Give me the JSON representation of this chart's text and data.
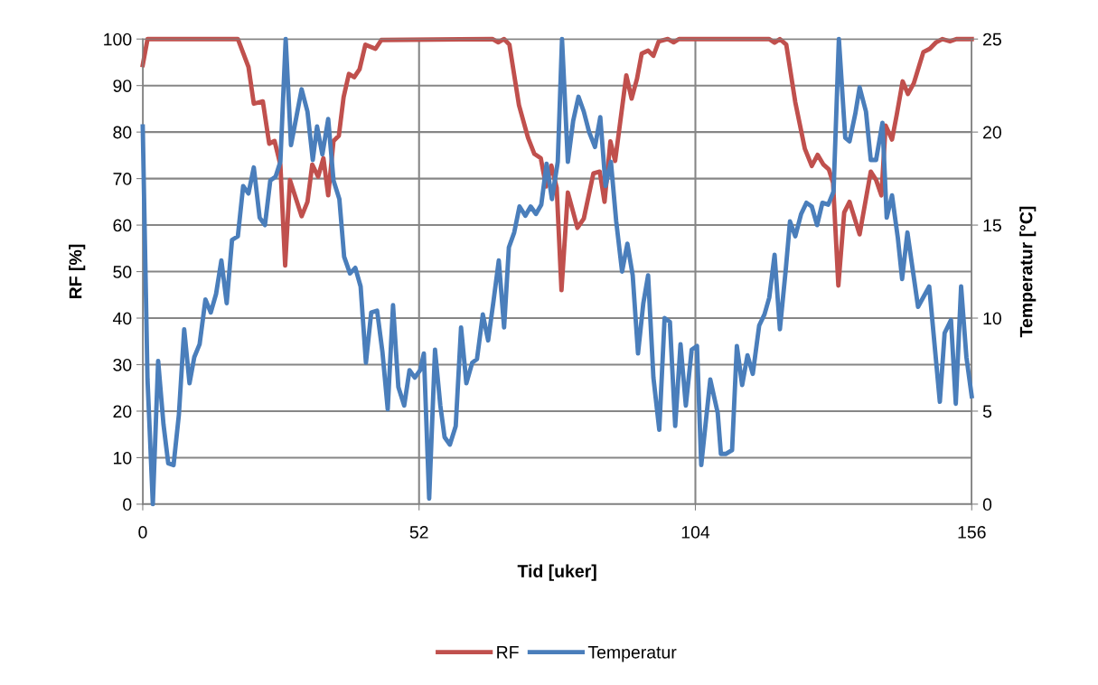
{
  "chart_data": {
    "type": "line",
    "xlabel": "Tid [uker]",
    "ylabel": "RF [%]",
    "y2label": "Temperatur [°C]",
    "xlim": [
      0,
      156
    ],
    "xticks": [
      0,
      52,
      104,
      156
    ],
    "ylim": [
      0,
      100
    ],
    "yticks": [
      0,
      10,
      20,
      30,
      40,
      50,
      60,
      70,
      80,
      90,
      100
    ],
    "y2lim": [
      0,
      25
    ],
    "y2ticks": [
      0,
      5,
      10,
      15,
      20,
      25
    ],
    "grid": true,
    "legend": "bottom",
    "marker": "none",
    "line_style": "solid",
    "series": [
      {
        "name": "RF",
        "color": "#c0504d",
        "axis": "y",
        "x": [
          0,
          0.9,
          17.9,
          18.9,
          19.9,
          20.9,
          22.6,
          23.8,
          24.8,
          25.9,
          26.8,
          27.7,
          29.9,
          31,
          31.9,
          33,
          34,
          34.9,
          35.9,
          36.9,
          37.8,
          38.8,
          39.8,
          40.8,
          41.9,
          43.8,
          44.9,
          65.8,
          66.9,
          68,
          69,
          70.8,
          72.5,
          73.7,
          74.9,
          75.9,
          76.9,
          77.9,
          78.8,
          80,
          81.8,
          83,
          84.8,
          86,
          86.9,
          88,
          88.9,
          91,
          92,
          93,
          93.9,
          95.1,
          96.1,
          97.1,
          98.8,
          99.9,
          100.9,
          117.9,
          118.9,
          119.9,
          121.1,
          122.8,
          124.6,
          125.9,
          127,
          128.1,
          129.1,
          129.9,
          130.9,
          132,
          133,
          134.9,
          137,
          138,
          139,
          139.8,
          141,
          141.9,
          143,
          144,
          145.1,
          146.9,
          148.1,
          149.3,
          150.5,
          151.9,
          153.1,
          156
        ],
        "values": [
          94.4,
          100,
          100,
          97,
          94,
          86.1,
          86.6,
          77.5,
          78.1,
          73,
          51.3,
          69.7,
          61.9,
          65,
          73,
          70.4,
          74.4,
          66.4,
          78.1,
          79.2,
          87.5,
          92.5,
          91.8,
          93.5,
          98.8,
          97.9,
          99.8,
          100,
          99.3,
          100,
          98.8,
          85.8,
          78.8,
          75.3,
          74.4,
          68.3,
          72.8,
          68,
          46,
          67,
          59.4,
          61.4,
          71.1,
          71.5,
          65,
          78,
          73.8,
          92.2,
          87.2,
          91.4,
          96.9,
          97.5,
          96.4,
          99.5,
          100,
          99.3,
          100,
          100,
          99.2,
          100,
          98.8,
          86.4,
          76.4,
          72.7,
          75.1,
          73,
          72,
          69.1,
          47,
          62.7,
          65,
          58,
          71.5,
          69.7,
          66.4,
          81.4,
          78.4,
          83.8,
          90.9,
          88.2,
          90.5,
          97.2,
          97.9,
          99.3,
          100,
          99.5,
          100,
          100
        ]
      },
      {
        "name": "Temperatur",
        "color": "#4a7ebb",
        "axis": "y2",
        "x": [
          0,
          0.9,
          1.9,
          2.9,
          3.9,
          4.8,
          5.8,
          6.8,
          7.8,
          8.8,
          9.7,
          10.7,
          11.8,
          12.8,
          13.8,
          14.8,
          15.8,
          16.8,
          17.9,
          18.9,
          19.9,
          20.9,
          22,
          23,
          24,
          25,
          25.9,
          26.9,
          27.9,
          28.9,
          29.9,
          31,
          32,
          32.8,
          33.8,
          34.9,
          35.9,
          37,
          37.9,
          39,
          40,
          41,
          42,
          43,
          44.1,
          45.1,
          46.1,
          47.1,
          48.1,
          49.2,
          50.2,
          51.2,
          52.2,
          52.9,
          53.9,
          55,
          56,
          56.8,
          57.8,
          58.9,
          59.9,
          60.9,
          62,
          62.9,
          64,
          65,
          66,
          67,
          68,
          68.9,
          69.9,
          70.9,
          72,
          73,
          74,
          75,
          76,
          77,
          78.1,
          78.9,
          80,
          81,
          82,
          83,
          84,
          85.1,
          86.1,
          87.1,
          88.1,
          89.1,
          90.2,
          91.2,
          92.2,
          93.2,
          94.2,
          95.1,
          96.1,
          97.2,
          98.2,
          99.2,
          100.2,
          101.2,
          102.2,
          103.3,
          104.3,
          105.1,
          106.8,
          108.2,
          108.8,
          109.7,
          110.9,
          111.8,
          112.8,
          113.8,
          114.8,
          116,
          117,
          117.9,
          118.9,
          119.9,
          121,
          121.8,
          122.8,
          123.9,
          124.9,
          125.9,
          126.9,
          127.9,
          129,
          130,
          131,
          132.2,
          133,
          134.1,
          134.9,
          136.1,
          137,
          138,
          139.2,
          140,
          141,
          142.1,
          142.9,
          143.9,
          145.9,
          148,
          150,
          150.9,
          152.1,
          153,
          154,
          155,
          156
        ],
        "values": [
          20.3,
          6.7,
          0,
          7.7,
          4.3,
          2.2,
          2.1,
          4.8,
          9.4,
          6.5,
          7.9,
          8.6,
          11,
          10.3,
          11.3,
          13.1,
          10.8,
          14.2,
          14.4,
          17.1,
          16.7,
          18.1,
          15.4,
          15,
          17.4,
          17.6,
          18.4,
          25,
          19.3,
          20.8,
          22.3,
          21.1,
          18.5,
          20.3,
          18.8,
          20.7,
          17.4,
          16.4,
          13.3,
          12.4,
          12.7,
          11.7,
          7.6,
          10.3,
          10.4,
          8.2,
          5.1,
          10.7,
          6.3,
          5.3,
          7.2,
          6.8,
          7.2,
          8.1,
          0.3,
          8.3,
          5.3,
          3.6,
          3.2,
          4.2,
          9.5,
          6.5,
          7.6,
          7.8,
          10.2,
          8.8,
          10.9,
          13.1,
          9.5,
          13.8,
          14.6,
          16,
          15.5,
          16,
          15.6,
          16.1,
          18.3,
          16.4,
          18.4,
          25,
          18.4,
          20.6,
          21.9,
          21.1,
          20,
          19.2,
          20.8,
          17.1,
          18.4,
          15.2,
          12.5,
          14,
          12.3,
          8.1,
          10.8,
          12.3,
          6.8,
          4,
          10,
          9.8,
          4.2,
          8.6,
          5.3,
          8.3,
          8.5,
          2.1,
          6.7,
          4.9,
          2.7,
          2.7,
          2.9,
          8.5,
          6.4,
          8,
          7,
          9.6,
          10.2,
          11.1,
          13.4,
          9.4,
          12.6,
          15.2,
          14.4,
          15.6,
          16.2,
          16,
          15,
          16.2,
          16.1,
          16.8,
          25,
          19.7,
          19.5,
          21,
          22.4,
          21.1,
          18.5,
          18.5,
          20.5,
          15.4,
          16.6,
          14.3,
          12.1,
          14.6,
          10.6,
          11.7,
          5.5,
          9.2,
          9.9,
          5.4,
          11.7,
          7.9,
          5.8
        ]
      }
    ]
  }
}
